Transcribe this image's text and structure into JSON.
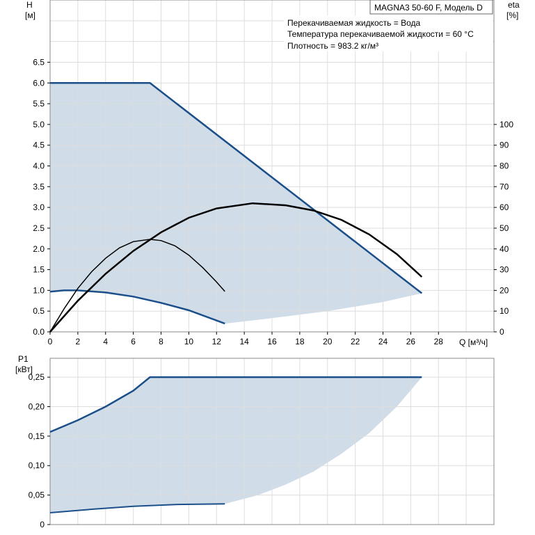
{
  "chart_data": [
    {
      "type": "line",
      "title": "MAGNA3 50-60 F, Модель D",
      "info": [
        "Перекачиваемая жидкость = Вода",
        "Температура перекачиваемой жидкости = 60 °C",
        "Плотность = 983.2 кг/м³"
      ],
      "ylabel": "H",
      "yunit": "[м]",
      "y2label": "eta",
      "y2unit": "[%]",
      "xlabel": "Q [м³/ч]",
      "xlim": [
        0,
        32
      ],
      "ylim": [
        0,
        8
      ],
      "y2lim": [
        0,
        160
      ],
      "xticks": [
        "0",
        "2",
        "4",
        "6",
        "8",
        "10",
        "12",
        "14",
        "16",
        "18",
        "20",
        "22",
        "24",
        "26",
        "28"
      ],
      "yticks": [
        "0.0",
        "0.5",
        "1.0",
        "1.5",
        "2.0",
        "2.5",
        "3.0",
        "3.5",
        "4.0",
        "4.5",
        "5.0",
        "5.5",
        "6.0",
        "6.5"
      ],
      "y2ticks": [
        "0",
        "10",
        "20",
        "30",
        "40",
        "50",
        "60",
        "70",
        "80",
        "90",
        "100"
      ],
      "series": [
        {
          "name": "H max",
          "axis": "H",
          "color": "#1a4f8a",
          "points": [
            [
              0,
              6
            ],
            [
              7.2,
              6
            ],
            [
              26.8,
              0.93
            ]
          ]
        },
        {
          "name": "H min",
          "axis": "H",
          "color": "#1a4f8a",
          "points": [
            [
              0,
              0.97
            ],
            [
              1,
              1.0
            ],
            [
              2,
              1.0
            ],
            [
              4,
              0.95
            ],
            [
              6,
              0.85
            ],
            [
              8,
              0.7
            ],
            [
              10,
              0.52
            ],
            [
              12.6,
              0.2
            ]
          ]
        },
        {
          "name": "H range lower",
          "axis": "H",
          "color": "#d0dce8",
          "points": [
            [
              12.6,
              0.2
            ],
            [
              16,
              0.33
            ],
            [
              20,
              0.5
            ],
            [
              24,
              0.72
            ],
            [
              26.8,
              0.93
            ]
          ]
        },
        {
          "name": "eta max",
          "axis": "eta",
          "color": "#000",
          "points": [
            [
              0,
              0
            ],
            [
              2,
              15
            ],
            [
              4,
              28
            ],
            [
              6,
              39
            ],
            [
              8,
              48
            ],
            [
              10,
              55
            ],
            [
              12,
              59.5
            ],
            [
              14.6,
              62
            ],
            [
              17,
              61
            ],
            [
              19,
              58.5
            ],
            [
              21,
              54
            ],
            [
              23,
              47
            ],
            [
              25,
              37.5
            ],
            [
              26.8,
              26.5
            ]
          ]
        },
        {
          "name": "eta min",
          "axis": "eta",
          "color": "#000",
          "points": [
            [
              0,
              0
            ],
            [
              1,
              11
            ],
            [
              2,
              21
            ],
            [
              3,
              29
            ],
            [
              4,
              35.5
            ],
            [
              5,
              40.5
            ],
            [
              6,
              43.5
            ],
            [
              7.2,
              44.6
            ],
            [
              8,
              44
            ],
            [
              9,
              41.5
            ],
            [
              10,
              37
            ],
            [
              11,
              31
            ],
            [
              12,
              24
            ],
            [
              12.6,
              19.5
            ]
          ]
        }
      ]
    },
    {
      "type": "line",
      "ylabel": "P1",
      "yunit": "[кВт]",
      "xlim": [
        0,
        32
      ],
      "ylim": [
        0,
        0.282
      ],
      "yticks": [
        "0",
        "0,05",
        "0,10",
        "0,15",
        "0,20",
        "0,25"
      ],
      "series": [
        {
          "name": "P1 max",
          "color": "#1a4f8a",
          "points": [
            [
              0,
              0.157
            ],
            [
              2,
              0.177
            ],
            [
              4,
              0.2
            ],
            [
              6,
              0.227
            ],
            [
              7.2,
              0.25
            ],
            [
              26.8,
              0.25
            ]
          ]
        },
        {
          "name": "P1 min",
          "color": "#1a4f8a",
          "points": [
            [
              0,
              0.02
            ],
            [
              3,
              0.026
            ],
            [
              6,
              0.031
            ],
            [
              9,
              0.034
            ],
            [
              12.6,
              0.035
            ]
          ]
        },
        {
          "name": "P1 range lower",
          "color": "#d0dce8",
          "points": [
            [
              12.6,
              0.035
            ],
            [
              15,
              0.05
            ],
            [
              17,
              0.068
            ],
            [
              19,
              0.09
            ],
            [
              21,
              0.12
            ],
            [
              23,
              0.155
            ],
            [
              25,
              0.2
            ],
            [
              26.8,
              0.25
            ]
          ]
        }
      ]
    }
  ]
}
